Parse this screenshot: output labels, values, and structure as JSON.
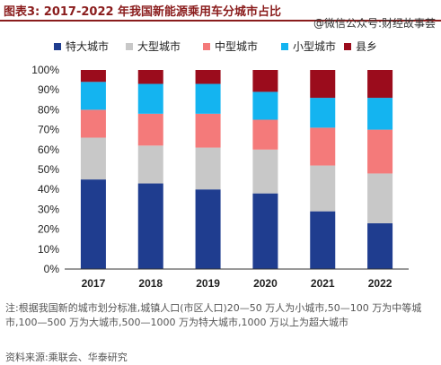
{
  "figure": {
    "title": "图表3:  2017-2022 年我国新能源乘用车分城市占比",
    "watermark": "@微信公众号:财经故事荟"
  },
  "chart_data": {
    "type": "bar",
    "stacked": true,
    "categories": [
      "2017",
      "2018",
      "2019",
      "2020",
      "2021",
      "2022"
    ],
    "series": [
      {
        "name": "特大城市",
        "color": "#1f3d8f",
        "values": [
          45,
          43,
          40,
          38,
          29,
          23
        ]
      },
      {
        "name": "大型城市",
        "color": "#c8c8c8",
        "values": [
          21,
          19,
          21,
          22,
          23,
          25
        ]
      },
      {
        "name": "中型城市",
        "color": "#f47a7a",
        "values": [
          14,
          16,
          17,
          15,
          19,
          22
        ]
      },
      {
        "name": "小型城市",
        "color": "#14b4f0",
        "values": [
          14,
          15,
          15,
          14,
          15,
          16
        ]
      },
      {
        "name": "县乡",
        "color": "#9b0c1c",
        "values": [
          6,
          7,
          7,
          11,
          14,
          14
        ]
      }
    ],
    "ylim": [
      0,
      100
    ],
    "yticks": [
      "0%",
      "10%",
      "20%",
      "30%",
      "40%",
      "50%",
      "60%",
      "70%",
      "80%",
      "90%",
      "100%"
    ],
    "legend_position": "top",
    "grid": false
  },
  "note": "注:根据我国新的城市划分标准,城镇人口(市区人口)20—50 万人为小城市,50—100 万为中等城市,100—500 万为大城市,500—1000 万为特大城市,1000 万以上为超大城市",
  "source": "资料来源:乘联会、华泰研究"
}
